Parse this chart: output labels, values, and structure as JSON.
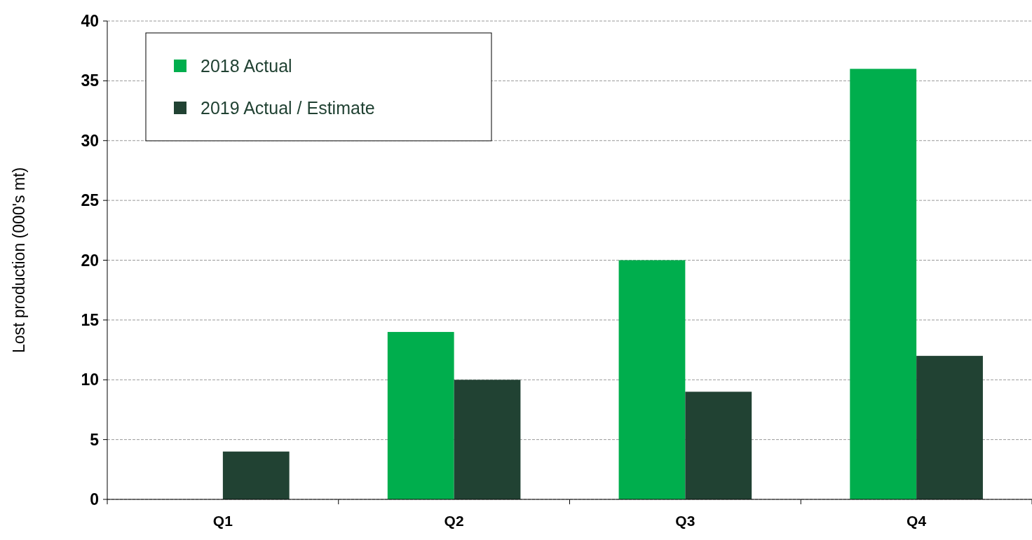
{
  "chart_data": {
    "type": "bar",
    "ylabel": "Lost production (000's mt)",
    "categories": [
      "Q1",
      "Q2",
      "Q3",
      "Q4"
    ],
    "series": [
      {
        "name": "2018 Actual",
        "color": "#00ae4d",
        "values": [
          0,
          14,
          20,
          36
        ]
      },
      {
        "name": "2019 Actual / Estimate",
        "color": "#214233",
        "values": [
          4,
          10,
          9,
          12
        ]
      }
    ],
    "ylim": [
      0,
      40
    ],
    "yticks": [
      0,
      5,
      10,
      15,
      20,
      25,
      30,
      35,
      40
    ],
    "grid": "y",
    "legend": "top left"
  }
}
